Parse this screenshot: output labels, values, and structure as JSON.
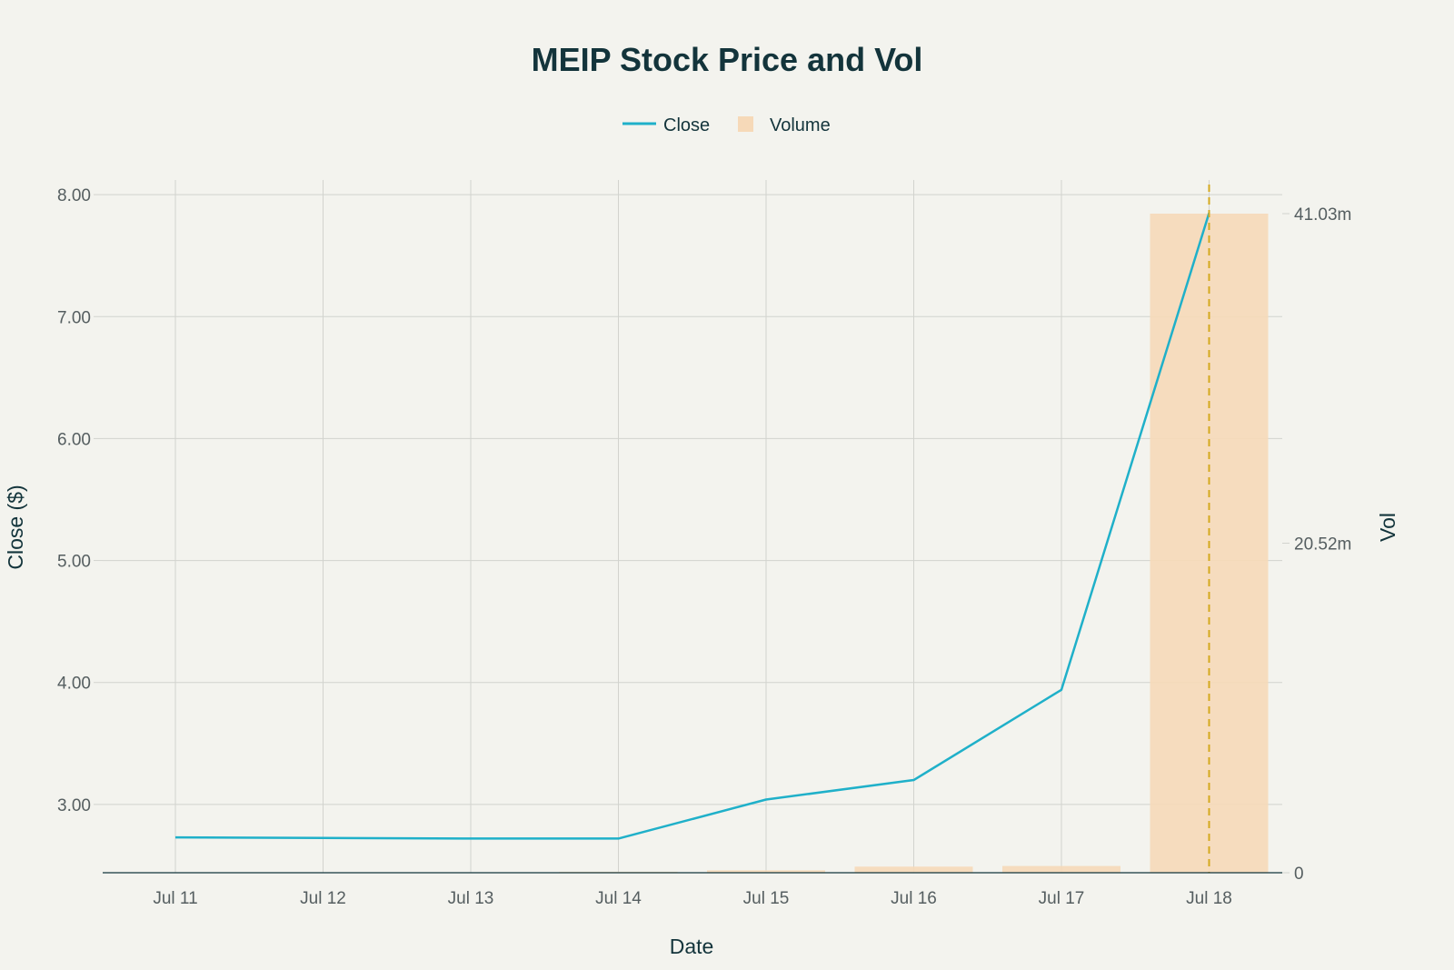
{
  "chart_data": {
    "type": "line",
    "title": "MEIP Stock Price and Vol",
    "xlabel": "Date",
    "ylabel": "Close ($)",
    "y2label": "Vol",
    "categories": [
      "Jul 11",
      "Jul 12",
      "Jul 13",
      "Jul 14",
      "Jul 15",
      "Jul 16",
      "Jul 17",
      "Jul 18"
    ],
    "series": [
      {
        "name": "Close",
        "type": "line",
        "axis": "left",
        "color": "#1FB0C9",
        "values": [
          2.73,
          2.725,
          2.72,
          2.72,
          3.04,
          3.2,
          3.94,
          7.85
        ]
      },
      {
        "name": "Volume",
        "type": "bar",
        "axis": "right",
        "color": "#F6D9B8",
        "values": [
          0,
          0,
          0,
          60000,
          150000,
          380000,
          420000,
          41030000
        ]
      }
    ],
    "ylim": [
      2.44,
      8.12
    ],
    "yticks": [
      3,
      4,
      5,
      6,
      7,
      8
    ],
    "ytick_labels": [
      "3.00",
      "4.00",
      "5.00",
      "6.00",
      "7.00",
      "8.00"
    ],
    "y2lim": [
      0,
      41030000
    ],
    "y2ticks": [
      0,
      20515000,
      41030000
    ],
    "y2tick_labels": [
      "0",
      "20.52m",
      "41.03m"
    ],
    "vline": {
      "category": "Jul 18",
      "style": "dashed",
      "color": "#D4A91E"
    },
    "grid": true,
    "legend_position": "top-center"
  }
}
